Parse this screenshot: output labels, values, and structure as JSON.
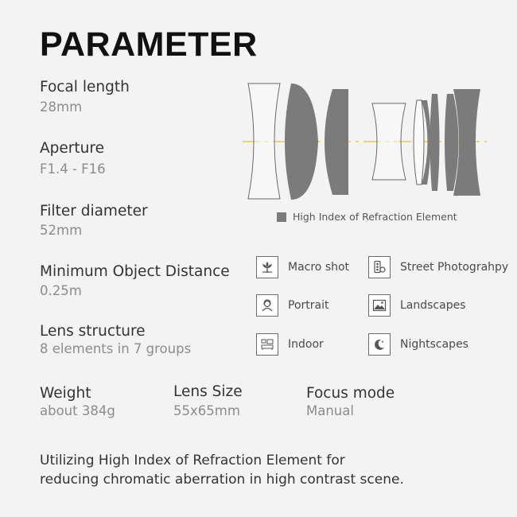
{
  "title": "PARAMETER",
  "specs": {
    "focal_length": {
      "label": "Focal length",
      "value": "28mm"
    },
    "aperture": {
      "label": "Aperture",
      "value": "F1.4 - F16"
    },
    "filter_diameter": {
      "label": "Filter diameter",
      "value": "52mm"
    },
    "min_object_distance": {
      "label": "Minimum Object Distance",
      "value": "0.25m"
    },
    "lens_structure": {
      "label": "Lens structure",
      "value": "8  elements  in  7  groups"
    },
    "weight": {
      "label": "Weight",
      "value": "about  384g"
    },
    "lens_size": {
      "label": "Lens Size",
      "value": "55x65mm"
    },
    "focus_mode": {
      "label": "Focus mode",
      "value": "Manual"
    }
  },
  "diagram": {
    "legend": "High Index of Refraction Element",
    "colors": {
      "hri_fill": "#7b7b7b",
      "axis": "#e3c23a",
      "outline": "#6a6a6a"
    }
  },
  "scenes": [
    {
      "label": "Macro shot",
      "icon": "flower-icon"
    },
    {
      "label": "Street Photograhpy",
      "icon": "traffic-light-icon"
    },
    {
      "label": "Portrait",
      "icon": "portrait-icon"
    },
    {
      "label": "Landscapes",
      "icon": "mountain-icon"
    },
    {
      "label": "Indoor",
      "icon": "indoor-icon"
    },
    {
      "label": "Nightscapes",
      "icon": "moon-icon"
    }
  ],
  "note": {
    "line1": "Utilizing High Index of Refraction Element for",
    "line2": "reducing chromatic aberration in high contrast scene."
  }
}
